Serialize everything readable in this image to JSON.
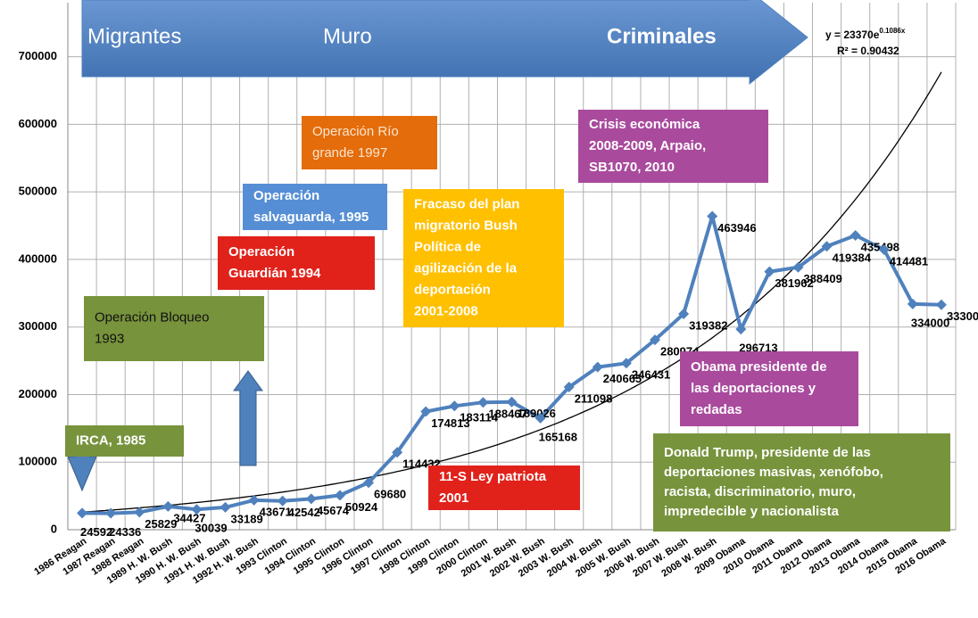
{
  "chart_data": {
    "type": "line",
    "categories": [
      "1986 Reagan",
      "1987 Reagan",
      "1988 Reagan",
      "1989 H. W. Bush",
      "1990 H. W. Bush",
      "1991 H. W. Bush",
      "1992 H. W. Bush",
      "1993 Clinton",
      "1994 Clinton",
      "1995 Clinton",
      "1996 Clinton",
      "1997 Clinton",
      "1998 Clinton",
      "1999 Clinton",
      "2000 Clinton",
      "2001 W. Bush",
      "2002 W. Bush",
      "2003 W. Bush",
      "2004 W. Bush",
      "2005 W. Bush",
      "2006 W. Bush",
      "2007 W. Bush",
      "2008 W. Bush",
      "2009 Obama",
      "2010 Obama",
      "2011 Obama",
      "2012 Obama",
      "2013 Obama",
      "2014 Obama",
      "2015 Obama",
      "2016 Obama"
    ],
    "series": [
      {
        "color": "#4f81bd",
        "values": [
          24592,
          24336,
          25829,
          34427,
          30039,
          33189,
          43671,
          42542,
          45674,
          50924,
          69680,
          114432,
          174813,
          183114,
          188467,
          189026,
          165168,
          211098,
          240665,
          246431,
          280974,
          319382,
          463946,
          296713,
          381962,
          388409,
          419384,
          435498,
          414481,
          334000,
          333000
        ]
      }
    ],
    "ylim": [
      0,
      780000
    ],
    "yticks": [
      0,
      100000,
      200000,
      300000,
      400000,
      500000,
      600000,
      700000
    ],
    "grid": true,
    "trendline": {
      "equation": "y = 23370e",
      "exponent": "0.1086x",
      "r_squared": "R² = 0.90432",
      "color": "#000000"
    },
    "banner": {
      "color": "#4f81bd",
      "labels": [
        "Migrantes",
        "Muro",
        "Criminales"
      ]
    },
    "annotations": [
      {
        "lines": [
          "IRCA, 1985"
        ],
        "color": "#77933c"
      },
      {
        "lines": [
          "Operación Bloqueo",
          "1993"
        ],
        "color": "#77933c"
      },
      {
        "lines": [
          "Operación",
          "Guardián 1994"
        ],
        "color": "#e0221b"
      },
      {
        "lines": [
          "Operación",
          "salvaguarda, 1995"
        ],
        "color": "#558ed5"
      },
      {
        "lines": [
          "Operación Río",
          "grande 1997"
        ],
        "color": "#e46c0a"
      },
      {
        "lines": [
          "Fracaso del plan",
          "migratorio Bush",
          "Política de",
          "agilización de la",
          "deportación",
          "2001-2008"
        ],
        "color": "#ffc000"
      },
      {
        "lines": [
          "Crisis económica",
          "2008-2009, Arpaio,",
          "SB1070, 2010"
        ],
        "color": "#a94a9d"
      },
      {
        "lines": [
          "Obama presidente de",
          "las deportaciones y",
          "redadas"
        ],
        "color": "#a94a9d"
      },
      {
        "lines": [
          "Donald Trump, presidente de las",
          "deportaciones masivas, xenófobo,",
          "racista, discriminatorio, muro,",
          "impredecible y nacionalista"
        ],
        "color": "#77933c"
      },
      {
        "lines": [
          "11-S Ley patriota",
          "2001"
        ],
        "color": "#e0221b"
      }
    ]
  }
}
